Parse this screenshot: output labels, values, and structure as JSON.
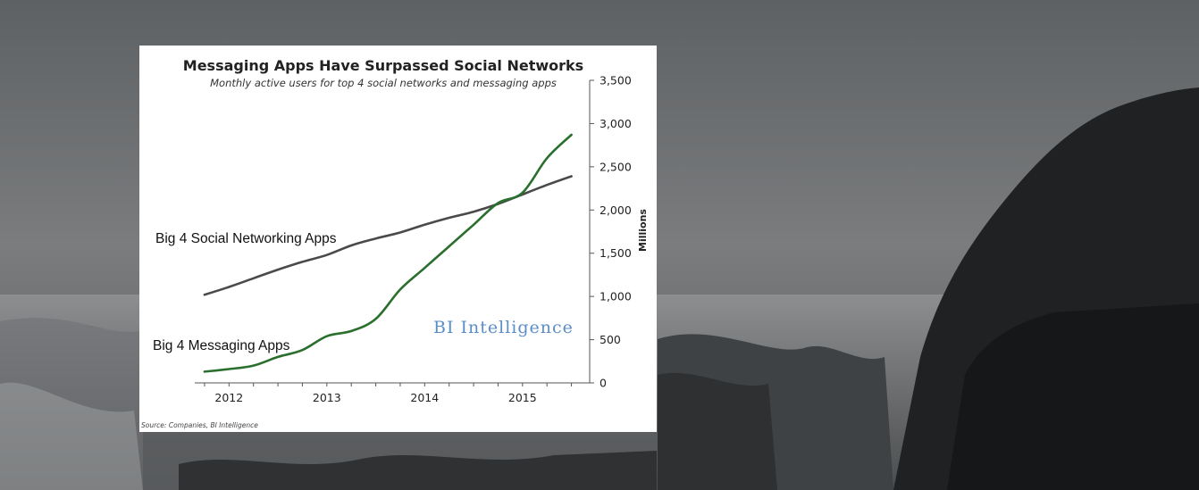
{
  "colors": {
    "social_line": "#4a4a4a",
    "messaging_line": "#2a6f2e",
    "watermark": "#5b8ec9",
    "axis": "#555555"
  },
  "chart_data": {
    "type": "line",
    "title": "Messaging Apps Have Surpassed Social Networks",
    "subtitle": "Monthly active users for top 4 social networks and messaging apps",
    "ylabel": "Millions",
    "ylim": [
      0,
      3500
    ],
    "y_ticks": [
      "3,500",
      "3,000",
      "2,500",
      "2,000",
      "1,500",
      "1,000",
      "500",
      "0"
    ],
    "x_ticks": [
      "2012",
      "2013",
      "2014",
      "2015"
    ],
    "xlim": [
      2011.65,
      2015.65
    ],
    "grid": false,
    "y_axis_position": "right",
    "series": [
      {
        "name": "Big 4 Social Networking Apps",
        "color": "#4a4a4a",
        "x": [
          2011.75,
          2012.0,
          2012.25,
          2012.5,
          2012.75,
          2013.0,
          2013.25,
          2013.5,
          2013.75,
          2014.0,
          2014.25,
          2014.5,
          2014.75,
          2015.0,
          2015.25,
          2015.5
        ],
        "values": [
          1020,
          1110,
          1210,
          1310,
          1400,
          1480,
          1590,
          1670,
          1740,
          1830,
          1910,
          1980,
          2070,
          2180,
          2290,
          2390
        ]
      },
      {
        "name": "Big 4 Messaging Apps",
        "color": "#2a6f2e",
        "x": [
          2011.75,
          2012.0,
          2012.25,
          2012.5,
          2012.75,
          2013.0,
          2013.25,
          2013.5,
          2013.75,
          2014.0,
          2014.25,
          2014.5,
          2014.75,
          2015.0,
          2015.25,
          2015.5
        ],
        "values": [
          130,
          160,
          200,
          300,
          380,
          540,
          600,
          740,
          1080,
          1330,
          1580,
          1830,
          2080,
          2200,
          2600,
          2870
        ]
      }
    ],
    "annotations": {
      "watermark": "BI Intelligence",
      "source": "Source: Companies, BI Intelligence"
    }
  }
}
